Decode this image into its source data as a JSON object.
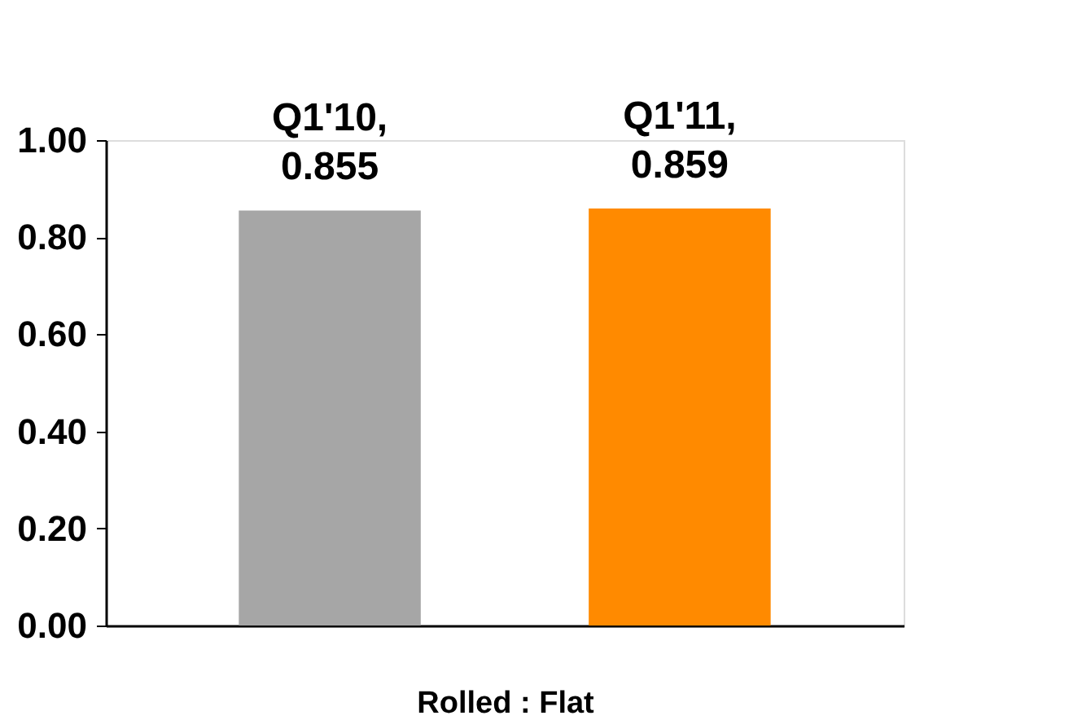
{
  "chart_data": {
    "type": "bar",
    "xlabel": "Rolled : Flat",
    "categories": [
      null,
      null
    ],
    "values": [
      0.855,
      0.859
    ],
    "colors": [
      "#a6a6a6",
      "#ff8a00"
    ],
    "value_labels": [
      "Q1'10, 0.855",
      "Q1'11, 0.859"
    ],
    "ylim": [
      0,
      1
    ],
    "yticks": [
      {
        "value": 0,
        "label": "0.00"
      },
      {
        "value": 0.2,
        "label": "0.20"
      },
      {
        "value": 0.4,
        "label": "0.40"
      },
      {
        "value": 0.6,
        "label": "0.60"
      },
      {
        "value": 0.8,
        "label": "0.80"
      },
      {
        "value": 1,
        "label": "1.00"
      }
    ],
    "grid": false,
    "tick_labels": "y"
  }
}
